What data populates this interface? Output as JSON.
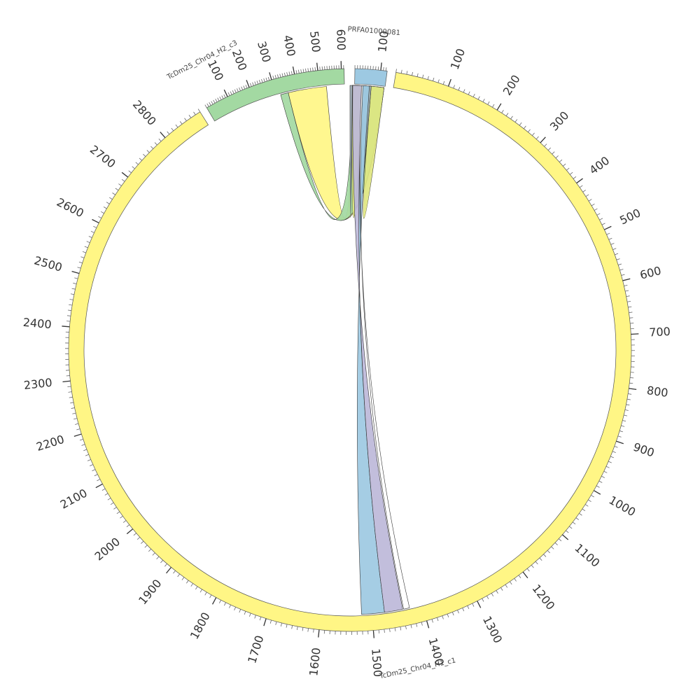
{
  "diagram": {
    "type": "circos",
    "segments": [
      {
        "name": "PRFA01000081",
        "length": 125,
        "start_deg": 1.0,
        "end_deg": 7.6,
        "color": "#9dc9e2",
        "major_ticks": [
          {
            "pos": 100,
            "label": "100"
          }
        ]
      },
      {
        "name": "TcDm25_Chr04_H1_c1",
        "length": 2880,
        "start_deg": 9.4,
        "end_deg": 327.8,
        "color": "#fff685",
        "major_ticks": [
          {
            "pos": 100,
            "label": "100"
          },
          {
            "pos": 200,
            "label": "200"
          },
          {
            "pos": 300,
            "label": "300"
          },
          {
            "pos": 400,
            "label": "400"
          },
          {
            "pos": 500,
            "label": "500"
          },
          {
            "pos": 600,
            "label": "600"
          },
          {
            "pos": 700,
            "label": "700"
          },
          {
            "pos": 800,
            "label": "800"
          },
          {
            "pos": 900,
            "label": "900"
          },
          {
            "pos": 1000,
            "label": "1000"
          },
          {
            "pos": 1100,
            "label": "1100"
          },
          {
            "pos": 1200,
            "label": "1200"
          },
          {
            "pos": 1300,
            "label": "1300"
          },
          {
            "pos": 1400,
            "label": "1400"
          },
          {
            "pos": 1500,
            "label": "1500"
          },
          {
            "pos": 1600,
            "label": "1600"
          },
          {
            "pos": 1700,
            "label": "1700"
          },
          {
            "pos": 1800,
            "label": "1800"
          },
          {
            "pos": 1900,
            "label": "1900"
          },
          {
            "pos": 2000,
            "label": "2000"
          },
          {
            "pos": 2100,
            "label": "2100"
          },
          {
            "pos": 2200,
            "label": "2200"
          },
          {
            "pos": 2300,
            "label": "2300"
          },
          {
            "pos": 2400,
            "label": "2400"
          },
          {
            "pos": 2500,
            "label": "2500"
          },
          {
            "pos": 2600,
            "label": "2600"
          },
          {
            "pos": 2700,
            "label": "2700"
          },
          {
            "pos": 2800,
            "label": "2800"
          }
        ]
      },
      {
        "name": "TcDm25_Chr04_H2_c3",
        "length": 612,
        "start_deg": 329.4,
        "end_deg": 358.8,
        "color": "#a3d9a2",
        "major_ticks": [
          {
            "pos": 100,
            "label": "100"
          },
          {
            "pos": 200,
            "label": "200"
          },
          {
            "pos": 300,
            "label": "300"
          },
          {
            "pos": 400,
            "label": "400"
          },
          {
            "pos": 500,
            "label": "500"
          },
          {
            "pos": 600,
            "label": "600"
          }
        ]
      }
    ],
    "links": [
      {
        "a_deg": [
          354.9,
          346.5
        ],
        "b_deg": [
          0.5,
          7.4
        ],
        "color": "#fff685"
      },
      {
        "a_deg": [
          346.5,
          344.8
        ],
        "b_deg": [
          0.5,
          7.4
        ],
        "color": "#a3d9a2"
      },
      {
        "a_deg": [
          2.7,
          7.4
        ],
        "b_deg": [
          0.5,
          4.6
        ],
        "color": "#dfe680"
      },
      {
        "a_deg": [
          0.0,
          2.7
        ],
        "b_deg": [
          0.5,
          4.6
        ],
        "color": "#9dabb4"
      },
      {
        "a_deg": [
          172.5,
          177.5
        ],
        "b_deg": [
          2.5,
          4.2
        ],
        "color": "#9dc9e2"
      },
      {
        "a_deg": [
          168.5,
          172.5
        ],
        "b_deg": [
          0.6,
          2.6
        ],
        "color": "#bdb8d9"
      },
      {
        "a_deg": [
          167.0,
          168.3
        ],
        "b_deg": [
          2.5,
          2.8
        ],
        "color": "#ffffff"
      }
    ]
  }
}
